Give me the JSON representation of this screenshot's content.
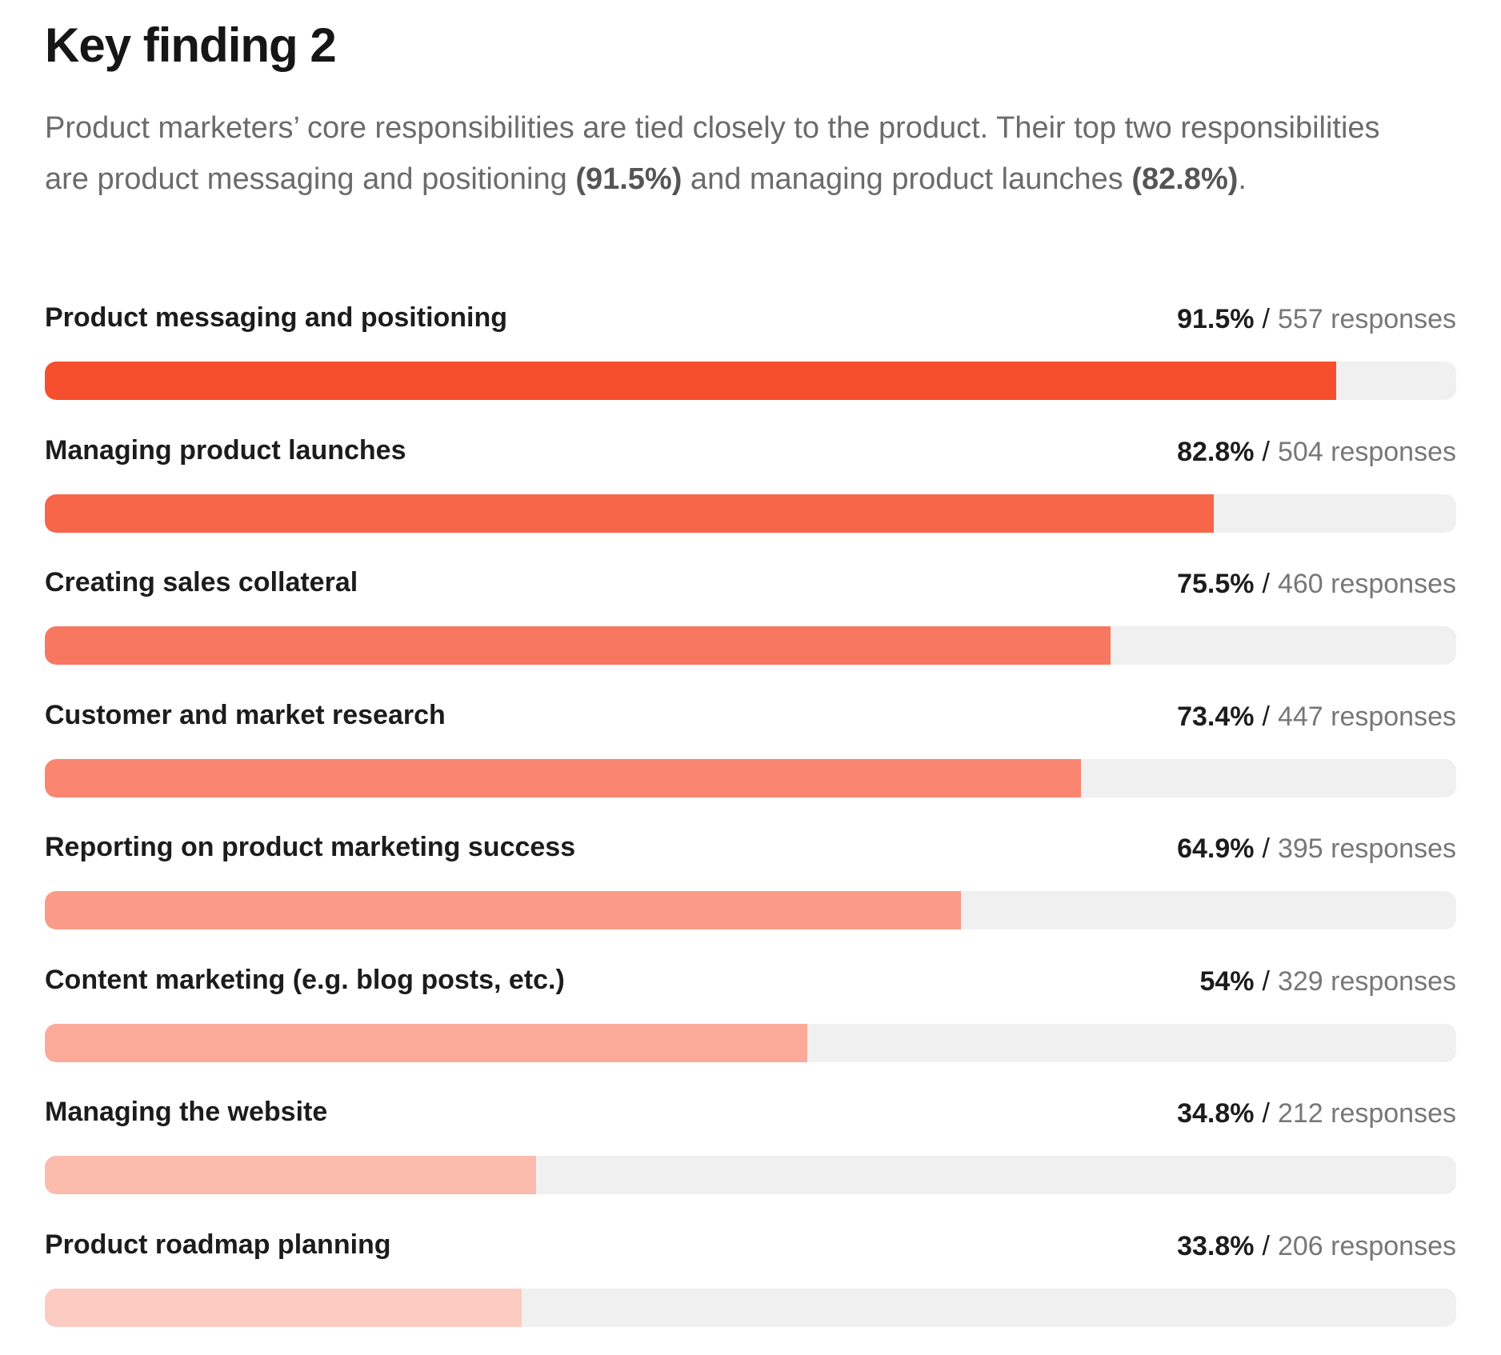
{
  "header": {
    "title": "Key finding 2",
    "intro_part1": "Product marketers’ core responsibilities are tied closely to the product. Their top two responsibilities are product messaging and positioning ",
    "intro_bold1": "(91.5%)",
    "intro_part2": " and managing product launches ",
    "intro_bold2": "(82.8%)",
    "intro_part3": "."
  },
  "chart_data": {
    "type": "bar",
    "orientation": "horizontal",
    "ylim": [
      0,
      100
    ],
    "grid": false,
    "categories": [
      "Product messaging and positioning",
      "Managing product launches",
      "Creating sales collateral",
      "Customer and market research",
      "Reporting on product marketing success",
      "Content marketing (e.g. blog posts, etc.)",
      "Managing the website",
      "Product roadmap planning"
    ],
    "values": [
      91.5,
      82.8,
      75.5,
      73.4,
      64.9,
      54,
      34.8,
      33.8
    ],
    "value_labels": [
      "91.5%",
      "82.8%",
      "75.5%",
      "73.4%",
      "64.9%",
      "54%",
      "34.8%",
      "33.8%"
    ],
    "responses": [
      557,
      504,
      460,
      447,
      395,
      329,
      212,
      206
    ],
    "response_labels": [
      "557 responses",
      "504 responses",
      "460 responses",
      "447 responses",
      "395 responses",
      "329 responses",
      "212 responses",
      "206 responses"
    ],
    "separator": "/",
    "colors": [
      "#f64f2e",
      "#f76649",
      "#f87760",
      "#fa8672",
      "#f99b88",
      "#fbaa9a",
      "#fbbcad",
      "#fccbc2"
    ],
    "track_color": "#f0f0f0"
  }
}
